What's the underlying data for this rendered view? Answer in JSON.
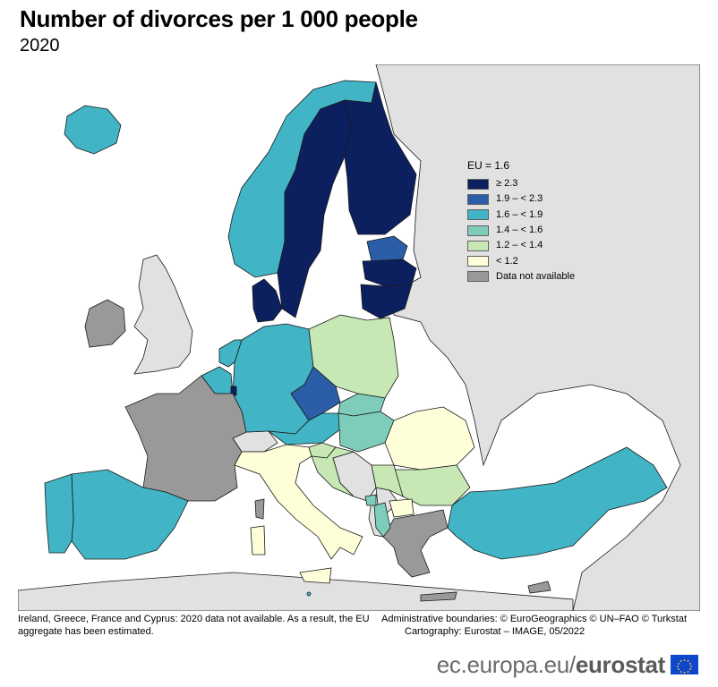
{
  "title": "Number of divorces per 1 000 people",
  "subtitle": "2020",
  "legend": {
    "title": "EU = 1.6",
    "items": [
      {
        "label": "≥ 2.3",
        "color": "#0c1f5e"
      },
      {
        "label": "1.9 – < 2.3",
        "color": "#2b5ea7"
      },
      {
        "label": "1.6 – < 1.9",
        "color": "#41b4c5"
      },
      {
        "label": "1.4 – < 1.6",
        "color": "#7ecdbb"
      },
      {
        "label": "1.2 – < 1.4",
        "color": "#c7e8b4"
      },
      {
        "label": "< 1.2",
        "color": "#fefed8"
      },
      {
        "label": "Data not available",
        "color": "#999999"
      }
    ]
  },
  "map_colors": {
    "sea": "#ffffff",
    "non_eu_land": "#e1e1e1",
    "border": "#1a1a1a"
  },
  "footnotes": {
    "left": "Ireland, Greece, France and Cyprus: 2020 data not available. As a result, the EU aggregate has been estimated.",
    "right_line1": "Administrative boundaries: © EuroGeographics © UN–FAO © Turkstat",
    "right_line2": "Cartography: Eurostat – IMAGE, 05/2022"
  },
  "brand": {
    "domain": "ec.europa.eu/",
    "name": "eurostat"
  }
}
